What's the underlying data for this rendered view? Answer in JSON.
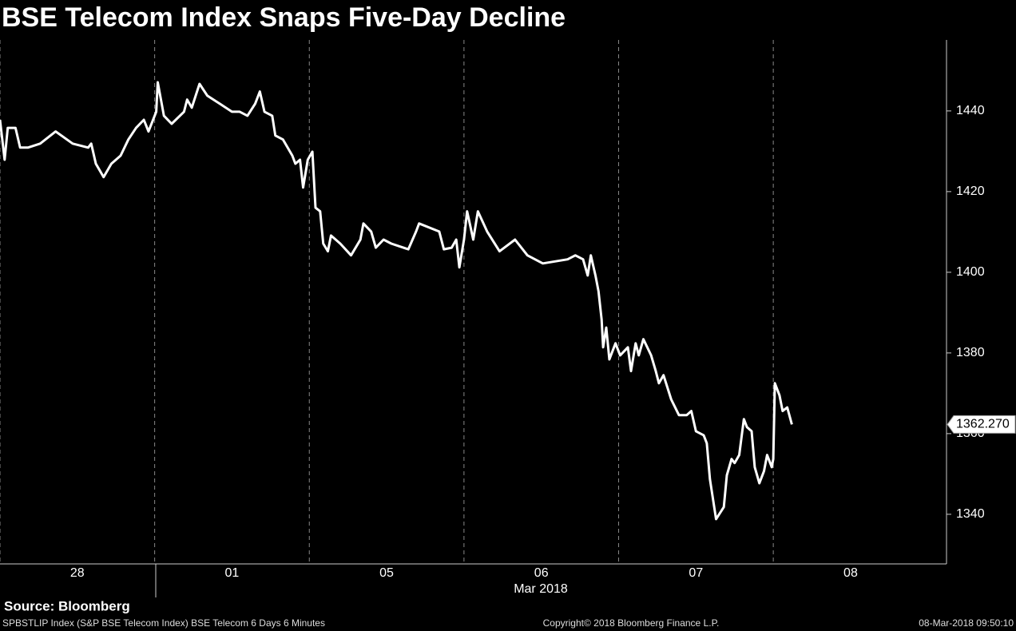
{
  "chart_data": {
    "type": "line",
    "title": "BSE Telecom Index Snaps Five-Day Decline",
    "source": "Source: Bloomberg",
    "footer_left": "SPBSTLIP Index (S&P BSE Telecom Index) BSE Telecom 6 Days 6 Minutes",
    "footer_center": "Copyright© 2018 Bloomberg Finance L.P.",
    "footer_right": "08-Mar-2018 09:50:10",
    "xlabel": "Mar 2018",
    "xlim": [
      0,
      6.12
    ],
    "xticks": [
      {
        "value": 0.5,
        "label": "28"
      },
      {
        "value": 1.5,
        "label": "01"
      },
      {
        "value": 2.5,
        "label": "05"
      },
      {
        "value": 3.5,
        "label": "06"
      },
      {
        "value": 4.5,
        "label": "07"
      },
      {
        "value": 5.5,
        "label": "08"
      }
    ],
    "ylim": [
      1327.7,
      1457.6
    ],
    "yticks": [
      1340,
      1360,
      1380,
      1400,
      1420,
      1440
    ],
    "last_price": {
      "value": 1362.27,
      "label": "1362.270"
    },
    "series": [
      {
        "color": "#ffffff",
        "x": [
          0,
          0.03,
          0.05,
          0.1,
          0.13,
          0.18,
          0.26,
          0.36,
          0.47,
          0.57,
          0.59,
          0.62,
          0.67,
          0.72,
          0.78,
          0.83,
          0.88,
          0.93,
          0.96,
          1.01,
          1.02,
          1.06,
          1.11,
          1.19,
          1.21,
          1.24,
          1.29,
          1.34,
          1.42,
          1.5,
          1.55,
          1.6,
          1.65,
          1.68,
          1.71,
          1.76,
          1.78,
          1.83,
          1.89,
          1.91,
          1.94,
          1.96,
          1.99,
          2.02,
          2.04,
          2.07,
          2.09,
          2.12,
          2.14,
          2.2,
          2.27,
          2.33,
          2.35,
          2.4,
          2.43,
          2.48,
          2.53,
          2.64,
          2.69,
          2.71,
          2.84,
          2.87,
          2.92,
          2.95,
          2.97,
          3.0,
          3.02,
          3.06,
          3.09,
          3.15,
          3.23,
          3.33,
          3.41,
          3.51,
          3.67,
          3.72,
          3.77,
          3.8,
          3.82,
          3.85,
          3.87,
          3.89,
          3.9,
          3.92,
          3.94,
          3.98,
          4.01,
          4.06,
          4.08,
          4.11,
          4.13,
          4.16,
          4.21,
          4.24,
          4.26,
          4.29,
          4.34,
          4.39,
          4.44,
          4.47,
          4.5,
          4.55,
          4.57,
          4.59,
          4.63,
          4.68,
          4.7,
          4.73,
          4.75,
          4.78,
          4.81,
          4.83,
          4.86,
          4.88,
          4.91,
          4.94,
          4.96,
          4.99,
          5.0,
          5.01,
          5.04,
          5.06,
          5.09,
          5.12
        ],
        "values": [
          1437.8,
          1427.9,
          1435.8,
          1435.8,
          1430.9,
          1430.9,
          1431.9,
          1434.9,
          1431.9,
          1430.9,
          1431.9,
          1426.9,
          1423.6,
          1426.9,
          1428.9,
          1432.9,
          1435.8,
          1437.8,
          1434.9,
          1439.8,
          1447.1,
          1438.8,
          1436.8,
          1439.8,
          1442.8,
          1440.8,
          1446.7,
          1443.8,
          1441.8,
          1439.8,
          1439.8,
          1438.8,
          1441.8,
          1444.8,
          1439.8,
          1438.8,
          1433.9,
          1432.9,
          1428.9,
          1426.9,
          1427.9,
          1421.0,
          1427.9,
          1429.9,
          1416.0,
          1415.1,
          1407.1,
          1405.2,
          1409.1,
          1407.1,
          1404.2,
          1408.1,
          1412.1,
          1410.1,
          1406.1,
          1408.1,
          1407.1,
          1405.7,
          1410.1,
          1412.1,
          1410.1,
          1405.7,
          1406.1,
          1408.1,
          1401.2,
          1408.1,
          1415.1,
          1408.1,
          1415.1,
          1410.1,
          1405.2,
          1408.1,
          1404.2,
          1402.2,
          1403.2,
          1404.2,
          1403.2,
          1399.2,
          1404.2,
          1399.2,
          1395.3,
          1388.3,
          1381.4,
          1386.3,
          1378.4,
          1382.4,
          1379.4,
          1381.4,
          1375.5,
          1382.4,
          1379.4,
          1383.4,
          1379.4,
          1375.5,
          1372.5,
          1374.5,
          1368.5,
          1364.6,
          1364.6,
          1365.6,
          1360.6,
          1359.6,
          1357.6,
          1348.7,
          1338.8,
          1341.8,
          1349.7,
          1353.7,
          1352.7,
          1354.7,
          1363.6,
          1361.6,
          1360.6,
          1351.7,
          1347.7,
          1350.7,
          1354.7,
          1351.7,
          1353.7,
          1372.5,
          1369.5,
          1365.6,
          1366.5,
          1362.27
        ]
      }
    ]
  }
}
